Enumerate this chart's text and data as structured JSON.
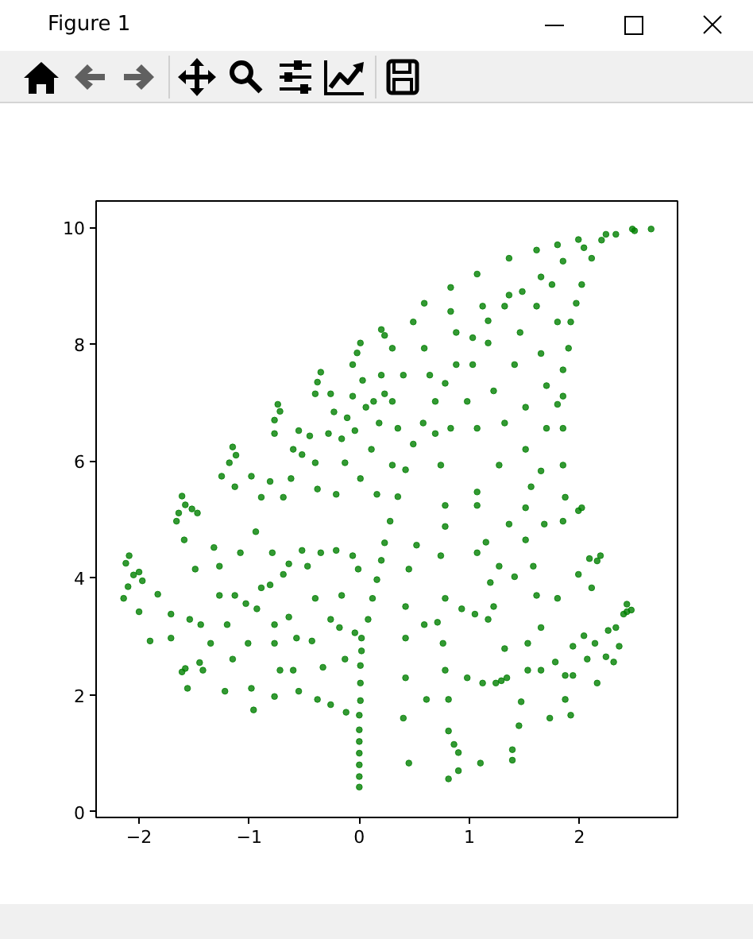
{
  "chart_data": {
    "type": "scatter",
    "title": "Figure 1",
    "x": [
      0,
      0,
      0,
      0,
      0,
      0,
      0,
      0.01,
      0.01,
      0.01,
      0.02,
      0.02,
      0.08,
      0.12,
      0.16,
      0.2,
      0.23,
      0.28,
      0.35,
      0.42,
      0.49,
      0.58,
      0.69,
      0.78,
      0.88,
      1.03,
      1.17,
      1.32,
      1.48,
      1.65,
      1.85,
      2.04,
      2.2,
      2.33,
      2.5,
      2.65,
      -2.09,
      -2.12,
      -2.05,
      -2.14,
      -2.1,
      -1.97,
      -2.0,
      -1.64,
      -1.61,
      -1.58,
      -1.52,
      -1.61,
      -1.58,
      -1.42,
      -1.45,
      -1.15,
      -1.18,
      -1.12,
      -0.74,
      -0.77,
      -0.72,
      -0.35,
      -0.4,
      -0.38,
      0.01,
      -0.06,
      -0.02,
      0.23,
      0.2,
      0.59,
      0.83,
      1.07,
      1.36,
      1.61,
      1.8,
      1.99,
      2.24,
      2.48,
      2.11,
      2.02,
      1.97,
      1.92,
      1.9,
      1.85,
      1.85,
      1.8,
      1.85,
      1.85,
      1.87,
      1.99,
      2.16,
      2.4,
      2.33,
      2.14,
      2.16,
      1.94,
      2.43,
      2.47,
      -1.9,
      -2.0,
      -1.83,
      -1.71,
      -1.71,
      -1.56,
      -1.49,
      -1.54,
      -1.44,
      -1.35,
      -1.32,
      -1.27,
      -1.27,
      -1.22,
      -1.2,
      -1.15,
      -1.13,
      -1.08,
      -1.03,
      -1.01,
      -0.98,
      -0.96,
      -0.94,
      -0.93,
      -0.89,
      -0.81,
      -0.79,
      -0.77,
      -0.77,
      -0.77,
      -0.72,
      -0.69,
      -0.64,
      -0.64,
      -0.6,
      -0.57,
      -0.55,
      -0.52,
      -0.47,
      -0.43,
      -0.4,
      -0.38,
      -0.35,
      -0.33,
      -0.26,
      -0.26,
      -0.21,
      -0.18,
      -0.16,
      -0.13,
      -0.12,
      -0.06,
      -0.04,
      -0.01,
      -1.66,
      -1.59,
      -1.47,
      -1.25,
      -1.13,
      -0.98,
      -0.89,
      -0.81,
      -0.69,
      -0.62,
      -0.6,
      -0.55,
      -0.52,
      -0.45,
      -0.4,
      -0.38,
      -0.28,
      -0.26,
      -0.23,
      -0.21,
      -0.16,
      -0.13,
      -0.11,
      -0.06,
      -0.04,
      0.01,
      0.03,
      0.06,
      0.11,
      0.13,
      0.16,
      0.18,
      0.2,
      0.23,
      -0.77,
      0.3,
      0.4,
      0.3,
      0.35,
      0.3,
      0.49,
      0.59,
      0.64,
      0.69,
      0.74,
      0.83,
      0.83,
      0.88,
      0.98,
      1.03,
      1.07,
      1.07,
      1.12,
      1.17,
      1.22,
      1.27,
      1.32,
      1.36,
      1.41,
      1.46,
      1.51,
      1.51,
      1.56,
      1.61,
      1.65,
      1.7,
      1.7,
      1.75,
      1.8,
      1.65,
      0.42,
      0.45,
      0.42,
      0.42,
      0.4,
      0.45,
      0.52,
      0.59,
      0.61,
      0.71,
      0.74,
      0.76,
      0.78,
      0.78,
      0.78,
      0.81,
      0.81,
      0.81,
      0.86,
      0.9,
      0.9,
      0.93,
      0.98,
      1.05,
      1.07,
      1.1,
      1.12,
      1.15,
      1.17,
      1.19,
      1.22,
      1.24,
      1.27,
      1.29,
      1.32,
      1.34,
      1.36,
      1.39,
      1.39,
      1.41,
      1.45,
      1.47,
      1.51,
      1.53,
      1.53,
      1.58,
      1.61,
      1.65,
      1.65,
      1.73,
      1.78,
      1.8,
      1.87,
      1.87,
      1.92,
      1.94,
      2.04,
      2.07,
      2.24,
      2.26,
      2.31,
      2.36,
      2.43,
      2.09,
      2.19,
      1.99,
      2.11,
      1.85,
      2.02,
      1.68,
      1.51,
      1.07,
      0.78
    ],
    "values": [
      0.42,
      0.6,
      0.8,
      1.0,
      1.2,
      1.4,
      1.65,
      1.9,
      2.2,
      2.5,
      2.75,
      2.97,
      3.29,
      3.65,
      3.97,
      4.3,
      4.6,
      4.97,
      5.39,
      5.85,
      6.29,
      6.65,
      7.02,
      7.33,
      7.65,
      8.11,
      8.4,
      8.65,
      8.9,
      9.15,
      9.42,
      9.65,
      9.78,
      9.88,
      9.94,
      9.97,
      4.38,
      4.25,
      4.05,
      3.65,
      3.85,
      3.95,
      4.1,
      5.11,
      5.4,
      5.25,
      5.18,
      2.39,
      2.45,
      2.42,
      2.55,
      6.24,
      5.97,
      6.1,
      6.97,
      6.7,
      6.85,
      7.52,
      7.15,
      7.35,
      8.02,
      7.65,
      7.85,
      8.15,
      8.25,
      8.7,
      8.97,
      9.2,
      9.47,
      9.61,
      9.7,
      9.79,
      9.88,
      9.97,
      9.47,
      9.02,
      8.7,
      8.38,
      7.93,
      7.56,
      7.11,
      6.97,
      6.56,
      5.93,
      5.38,
      5.15,
      4.29,
      3.38,
      3.15,
      2.88,
      2.2,
      2.33,
      3.55,
      3.45,
      2.92,
      3.42,
      3.72,
      3.38,
      2.97,
      2.11,
      4.15,
      3.29,
      3.2,
      2.88,
      4.52,
      3.7,
      4.2,
      2.06,
      3.2,
      2.61,
      3.7,
      4.43,
      3.56,
      2.88,
      2.11,
      1.74,
      4.79,
      3.47,
      3.83,
      3.88,
      4.43,
      3.2,
      2.88,
      1.97,
      2.42,
      4.06,
      4.24,
      3.33,
      2.42,
      2.97,
      2.06,
      4.47,
      4.2,
      2.92,
      3.65,
      1.92,
      4.43,
      2.47,
      1.83,
      3.29,
      4.47,
      3.15,
      3.7,
      2.61,
      1.7,
      4.38,
      3.06,
      4.15,
      4.97,
      4.65,
      5.11,
      5.74,
      5.56,
      5.74,
      5.38,
      5.65,
      5.38,
      5.7,
      6.2,
      6.52,
      6.11,
      6.43,
      5.97,
      5.52,
      6.47,
      7.15,
      6.84,
      5.43,
      6.38,
      5.97,
      6.74,
      7.11,
      6.52,
      5.7,
      7.38,
      6.92,
      6.2,
      7.02,
      5.43,
      6.65,
      7.47,
      7.15,
      6.47,
      7.93,
      7.47,
      7.02,
      6.56,
      5.93,
      8.38,
      7.93,
      7.47,
      6.47,
      5.93,
      6.56,
      8.56,
      8.2,
      7.02,
      7.65,
      6.56,
      5.47,
      8.65,
      8.02,
      7.2,
      5.93,
      6.65,
      8.84,
      7.65,
      8.2,
      6.92,
      6.2,
      5.56,
      8.65,
      7.84,
      7.29,
      6.56,
      9.02,
      8.38,
      5.83,
      3.51,
      4.15,
      2.97,
      2.29,
      1.6,
      0.83,
      4.56,
      3.2,
      1.92,
      3.24,
      4.38,
      2.88,
      2.42,
      3.65,
      4.88,
      1.92,
      1.38,
      0.56,
      1.15,
      0.7,
      1.01,
      3.47,
      2.29,
      3.38,
      4.43,
      0.83,
      2.2,
      4.61,
      3.29,
      3.92,
      3.51,
      2.2,
      4.2,
      2.24,
      2.79,
      2.29,
      4.92,
      1.06,
      0.88,
      4.02,
      1.47,
      1.88,
      4.65,
      2.88,
      2.42,
      4.2,
      3.7,
      3.15,
      2.42,
      1.6,
      2.56,
      3.65,
      2.33,
      1.92,
      1.65,
      2.83,
      3.01,
      2.61,
      2.65,
      3.1,
      2.56,
      2.83,
      3.42,
      4.33,
      4.38,
      4.06,
      3.83,
      4.97,
      5.2,
      4.92,
      5.2,
      5.24,
      5.24
    ],
    "color": "#008000",
    "marker": "circle",
    "xlim": [
      -2.39,
      2.89
    ],
    "ylim": [
      -0.1,
      10.45
    ],
    "xticks": [
      -2,
      -1,
      0,
      1,
      2
    ],
    "yticks": [
      0,
      2,
      4,
      6,
      8,
      10
    ],
    "grid": false
  }
}
